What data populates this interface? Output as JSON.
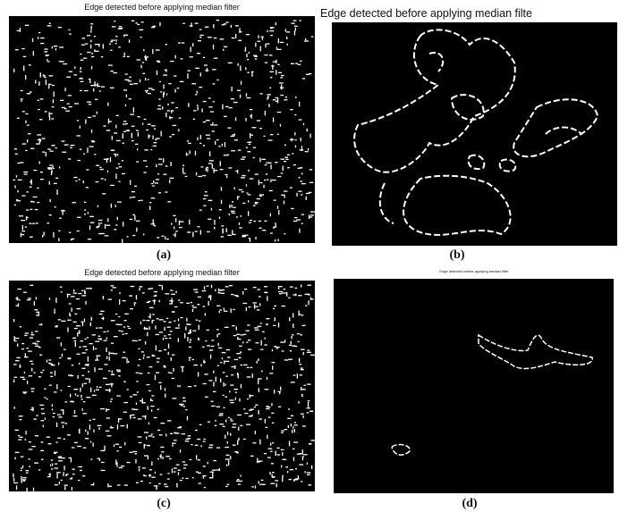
{
  "panels": [
    {
      "title": "Edge detected before applying median filter",
      "caption": "(a)"
    },
    {
      "title": "Edge detected before applying median filte",
      "caption": "(b)"
    },
    {
      "title": "Edge detected before applying median filter",
      "caption": "(c)"
    },
    {
      "title": "Edge detected before applying median filter",
      "caption": "(d)"
    }
  ]
}
